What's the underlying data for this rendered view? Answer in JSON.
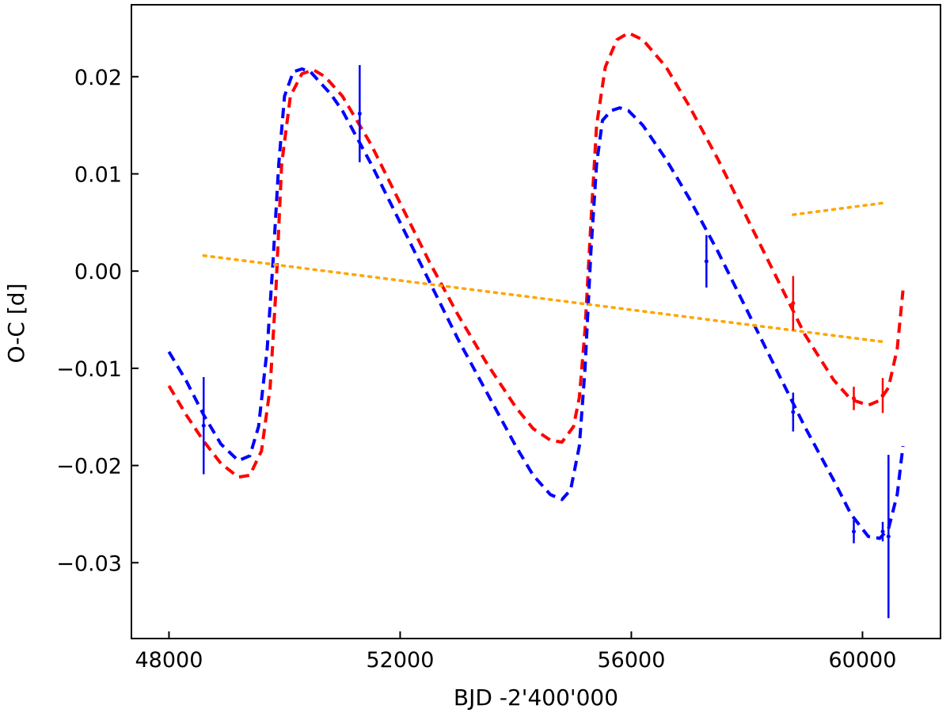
{
  "chart_data": {
    "type": "line",
    "title": "",
    "xlabel": "BJD -2'400'000",
    "ylabel": "O-C [d]",
    "xlim": [
      47350,
      61350
    ],
    "ylim": [
      -0.0378,
      0.0274
    ],
    "grid": false,
    "legend": "none",
    "x_ticks": [
      {
        "value": 48000,
        "label": "48000"
      },
      {
        "value": 52000,
        "label": "52000"
      },
      {
        "value": 56000,
        "label": "56000"
      },
      {
        "value": 60000,
        "label": "60000"
      }
    ],
    "y_ticks": [
      {
        "value": 0.02,
        "label": "0.02"
      },
      {
        "value": 0.01,
        "label": "0.01"
      },
      {
        "value": 0.0,
        "label": "0.00"
      },
      {
        "value": -0.01,
        "label": "−0.01"
      },
      {
        "value": -0.02,
        "label": "−0.02"
      },
      {
        "value": -0.03,
        "label": "−0.03"
      }
    ],
    "series": [
      {
        "color": "#ff0000",
        "style": "dashed",
        "x": [
          48000,
          48300,
          48600,
          48900,
          49200,
          49400,
          49600,
          49750,
          49850,
          49950,
          50100,
          50300,
          50500,
          50700,
          51000,
          51500,
          52000,
          52500,
          53000,
          53500,
          54000,
          54300,
          54600,
          54800,
          55000,
          55100,
          55200,
          55300,
          55400,
          55550,
          55750,
          55950,
          56200,
          56600,
          57000,
          57500,
          58000,
          58500,
          59000,
          59500,
          59800,
          60100,
          60300,
          60450,
          60600,
          60700
        ],
        "y": [
          -0.0118,
          -0.0148,
          -0.0175,
          -0.0198,
          -0.0212,
          -0.021,
          -0.0185,
          -0.012,
          -0.002,
          0.011,
          0.018,
          0.0203,
          0.0207,
          0.02,
          0.018,
          0.013,
          0.007,
          0.001,
          -0.0045,
          -0.0095,
          -0.014,
          -0.0162,
          -0.0174,
          -0.0176,
          -0.016,
          -0.013,
          -0.006,
          0.005,
          0.015,
          0.021,
          0.0238,
          0.0245,
          0.0238,
          0.021,
          0.017,
          0.0115,
          0.0055,
          -0.0005,
          -0.0065,
          -0.0112,
          -0.0132,
          -0.0138,
          -0.0133,
          -0.012,
          -0.008,
          -0.002
        ]
      },
      {
        "color": "#0000ff",
        "style": "dashed",
        "x": [
          48000,
          48300,
          48600,
          48900,
          49200,
          49400,
          49550,
          49700,
          49800,
          49900,
          50000,
          50150,
          50300,
          50450,
          50600,
          50800,
          51000,
          51500,
          52000,
          52500,
          53000,
          53500,
          54000,
          54300,
          54600,
          54800,
          54950,
          55100,
          55200,
          55300,
          55400,
          55500,
          55650,
          55800,
          55950,
          56200,
          56600,
          57000,
          57500,
          58000,
          58500,
          59000,
          59500,
          59800,
          60100,
          60300,
          60450,
          60600,
          60700
        ],
        "y": [
          -0.0083,
          -0.0113,
          -0.0148,
          -0.0178,
          -0.0195,
          -0.019,
          -0.016,
          -0.008,
          0.001,
          0.011,
          0.018,
          0.0205,
          0.0208,
          0.0205,
          0.0195,
          0.0182,
          0.0165,
          0.011,
          0.005,
          -0.001,
          -0.007,
          -0.0125,
          -0.018,
          -0.021,
          -0.023,
          -0.0235,
          -0.0225,
          -0.018,
          -0.01,
          0.002,
          0.011,
          0.0155,
          0.0165,
          0.0168,
          0.0165,
          0.015,
          0.0115,
          0.0075,
          0.002,
          -0.004,
          -0.01,
          -0.016,
          -0.0215,
          -0.025,
          -0.0273,
          -0.0275,
          -0.0265,
          -0.023,
          -0.018
        ]
      },
      {
        "color": "#ffa500",
        "style": "dotted",
        "x": [
          48600,
          60400
        ],
        "y": [
          0.0016,
          -0.0073
        ]
      },
      {
        "color": "#ffa500",
        "style": "dotted",
        "x": [
          58800,
          60350
        ],
        "y": [
          0.0058,
          0.007
        ]
      }
    ],
    "error_bars": [
      {
        "color": "#0000ff",
        "points": [
          {
            "x": 48600,
            "y": -0.0159,
            "err": 0.005
          },
          {
            "x": 51300,
            "y": 0.0162,
            "err": 0.005
          },
          {
            "x": 57300,
            "y": 0.001,
            "err": 0.0027
          },
          {
            "x": 58800,
            "y": -0.0145,
            "err": 0.002
          },
          {
            "x": 59850,
            "y": -0.0268,
            "err": 0.0012
          },
          {
            "x": 60350,
            "y": -0.0268,
            "err": 0.001
          },
          {
            "x": 60450,
            "y": -0.0273,
            "err": 0.0084
          }
        ]
      },
      {
        "color": "#ff0000",
        "points": [
          {
            "x": 58800,
            "y": -0.0033,
            "err": 0.0028
          },
          {
            "x": 59850,
            "y": -0.0131,
            "err": 0.0012
          },
          {
            "x": 60350,
            "y": -0.0128,
            "err": 0.0018
          }
        ]
      }
    ]
  }
}
